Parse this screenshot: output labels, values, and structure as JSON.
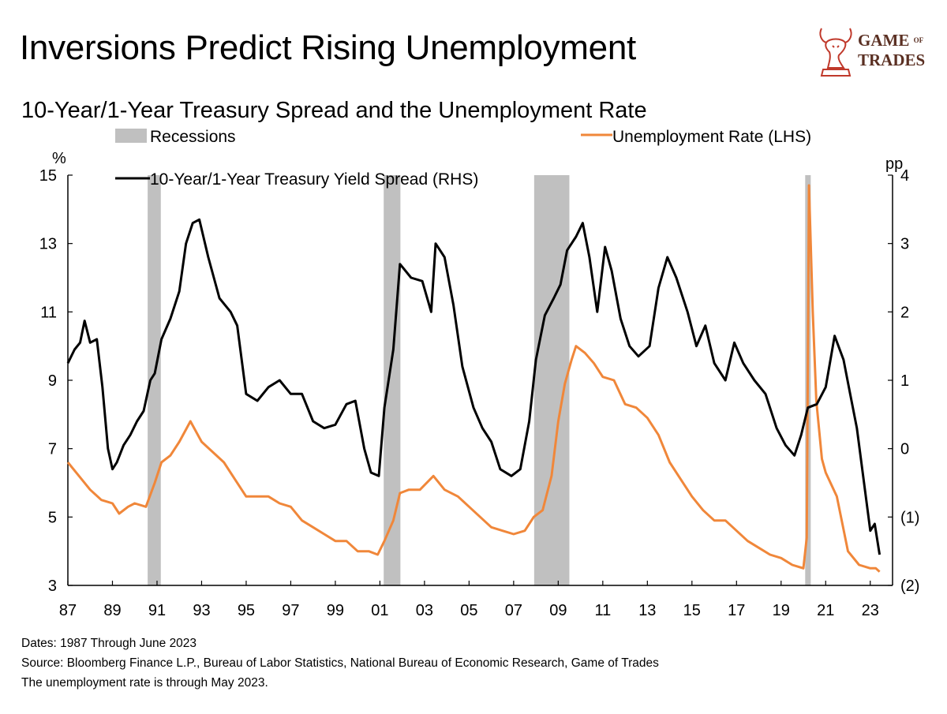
{
  "title": "Inversions Predict Rising Unemployment",
  "subtitle": "10-Year/1-Year Treasury Spread and the Unemployment Rate",
  "logo": {
    "line1": "GAME",
    "of": "OF",
    "line2": "TRADES"
  },
  "notes": {
    "dates": "Dates: 1987 Through June 2023",
    "source": "Source: Bloomberg Finance L.P., Bureau of Labor Statistics, National Bureau of Economic Research, Game of Trades",
    "footnote": "The unemployment rate is through May 2023."
  },
  "colors": {
    "unemployment": "#f0873a",
    "spread": "#000000",
    "recession": "#c0c0c0"
  },
  "chart_data": {
    "type": "line",
    "legend": [
      {
        "name": "Recessions",
        "kind": "bar"
      },
      {
        "name": "Unemployment Rate (LHS)",
        "kind": "line"
      },
      {
        "name": "10-Year/1-Year Treasury Yield Spread (RHS)",
        "kind": "line"
      }
    ],
    "left_axis": {
      "unit": "%",
      "min": 3,
      "max": 15,
      "ticks": [
        3,
        5,
        7,
        9,
        11,
        13,
        15
      ]
    },
    "right_axis": {
      "unit": "pp",
      "min": -2,
      "max": 4,
      "ticks": [
        -2,
        -1,
        0,
        1,
        2,
        3,
        4
      ],
      "tick_labels": [
        "(2)",
        "(1)",
        "0",
        "1",
        "2",
        "3",
        "4"
      ]
    },
    "x_axis": {
      "min": 1987,
      "max": 2024,
      "ticks": [
        1987,
        1989,
        1991,
        1993,
        1995,
        1997,
        1999,
        2001,
        2003,
        2005,
        2007,
        2009,
        2011,
        2013,
        2015,
        2017,
        2019,
        2021,
        2023
      ],
      "tick_labels": [
        "87",
        "89",
        "91",
        "93",
        "95",
        "97",
        "99",
        "01",
        "03",
        "05",
        "07",
        "09",
        "11",
        "13",
        "15",
        "17",
        "19",
        "21",
        "23"
      ]
    },
    "recessions": [
      [
        1990.58,
        1991.17
      ],
      [
        2001.17,
        2001.92
      ],
      [
        2007.92,
        2009.5
      ],
      [
        2020.08,
        2020.33
      ]
    ],
    "series": [
      {
        "name": "Unemployment Rate (LHS)",
        "axis": "left",
        "points": [
          [
            1987.0,
            6.6
          ],
          [
            1987.5,
            6.2
          ],
          [
            1988.0,
            5.8
          ],
          [
            1988.5,
            5.5
          ],
          [
            1989.0,
            5.4
          ],
          [
            1989.3,
            5.1
          ],
          [
            1989.7,
            5.3
          ],
          [
            1990.0,
            5.4
          ],
          [
            1990.5,
            5.3
          ],
          [
            1990.9,
            6.0
          ],
          [
            1991.2,
            6.6
          ],
          [
            1991.6,
            6.8
          ],
          [
            1992.0,
            7.2
          ],
          [
            1992.5,
            7.8
          ],
          [
            1993.0,
            7.2
          ],
          [
            1993.5,
            6.9
          ],
          [
            1994.0,
            6.6
          ],
          [
            1994.5,
            6.1
          ],
          [
            1995.0,
            5.6
          ],
          [
            1995.5,
            5.6
          ],
          [
            1996.0,
            5.6
          ],
          [
            1996.5,
            5.4
          ],
          [
            1997.0,
            5.3
          ],
          [
            1997.5,
            4.9
          ],
          [
            1998.0,
            4.7
          ],
          [
            1998.5,
            4.5
          ],
          [
            1999.0,
            4.3
          ],
          [
            1999.5,
            4.3
          ],
          [
            2000.0,
            4.0
          ],
          [
            2000.5,
            4.0
          ],
          [
            2000.9,
            3.9
          ],
          [
            2001.2,
            4.3
          ],
          [
            2001.6,
            4.9
          ],
          [
            2001.9,
            5.7
          ],
          [
            2002.3,
            5.8
          ],
          [
            2002.8,
            5.8
          ],
          [
            2003.4,
            6.2
          ],
          [
            2003.9,
            5.8
          ],
          [
            2004.5,
            5.6
          ],
          [
            2005.0,
            5.3
          ],
          [
            2005.5,
            5.0
          ],
          [
            2006.0,
            4.7
          ],
          [
            2006.5,
            4.6
          ],
          [
            2007.0,
            4.5
          ],
          [
            2007.5,
            4.6
          ],
          [
            2007.9,
            5.0
          ],
          [
            2008.3,
            5.2
          ],
          [
            2008.7,
            6.2
          ],
          [
            2009.0,
            7.8
          ],
          [
            2009.3,
            8.9
          ],
          [
            2009.6,
            9.6
          ],
          [
            2009.8,
            10.0
          ],
          [
            2010.2,
            9.8
          ],
          [
            2010.6,
            9.5
          ],
          [
            2011.0,
            9.1
          ],
          [
            2011.5,
            9.0
          ],
          [
            2012.0,
            8.3
          ],
          [
            2012.5,
            8.2
          ],
          [
            2013.0,
            7.9
          ],
          [
            2013.5,
            7.4
          ],
          [
            2014.0,
            6.6
          ],
          [
            2014.5,
            6.1
          ],
          [
            2015.0,
            5.6
          ],
          [
            2015.5,
            5.2
          ],
          [
            2016.0,
            4.9
          ],
          [
            2016.5,
            4.9
          ],
          [
            2017.0,
            4.6
          ],
          [
            2017.5,
            4.3
          ],
          [
            2018.0,
            4.1
          ],
          [
            2018.5,
            3.9
          ],
          [
            2019.0,
            3.8
          ],
          [
            2019.5,
            3.6
          ],
          [
            2020.0,
            3.5
          ],
          [
            2020.15,
            4.4
          ],
          [
            2020.25,
            14.7
          ],
          [
            2020.42,
            11.0
          ],
          [
            2020.58,
            8.4
          ],
          [
            2020.83,
            6.7
          ],
          [
            2021.0,
            6.3
          ],
          [
            2021.5,
            5.6
          ],
          [
            2022.0,
            4.0
          ],
          [
            2022.5,
            3.6
          ],
          [
            2023.0,
            3.5
          ],
          [
            2023.25,
            3.5
          ],
          [
            2023.42,
            3.4
          ]
        ]
      },
      {
        "name": "10-Year/1-Year Treasury Yield Spread (RHS)",
        "axis": "right",
        "points": [
          [
            1987.0,
            1.25
          ],
          [
            1987.3,
            1.45
          ],
          [
            1987.55,
            1.55
          ],
          [
            1987.75,
            1.87
          ],
          [
            1988.0,
            1.55
          ],
          [
            1988.3,
            1.6
          ],
          [
            1988.55,
            0.9
          ],
          [
            1988.8,
            0.0
          ],
          [
            1989.0,
            -0.3
          ],
          [
            1989.2,
            -0.2
          ],
          [
            1989.5,
            0.05
          ],
          [
            1989.8,
            0.2
          ],
          [
            1990.1,
            0.4
          ],
          [
            1990.4,
            0.55
          ],
          [
            1990.7,
            1.0
          ],
          [
            1990.9,
            1.1
          ],
          [
            1991.2,
            1.6
          ],
          [
            1991.6,
            1.9
          ],
          [
            1992.0,
            2.3
          ],
          [
            1992.3,
            3.0
          ],
          [
            1992.6,
            3.3
          ],
          [
            1992.9,
            3.35
          ],
          [
            1993.3,
            2.8
          ],
          [
            1993.8,
            2.2
          ],
          [
            1994.3,
            2.0
          ],
          [
            1994.6,
            1.8
          ],
          [
            1995.0,
            0.8
          ],
          [
            1995.5,
            0.7
          ],
          [
            1996.0,
            0.9
          ],
          [
            1996.5,
            1.0
          ],
          [
            1997.0,
            0.8
          ],
          [
            1997.5,
            0.8
          ],
          [
            1998.0,
            0.4
          ],
          [
            1998.5,
            0.3
          ],
          [
            1999.0,
            0.35
          ],
          [
            1999.5,
            0.65
          ],
          [
            1999.9,
            0.7
          ],
          [
            2000.3,
            0.0
          ],
          [
            2000.6,
            -0.35
          ],
          [
            2000.95,
            -0.4
          ],
          [
            2001.2,
            0.6
          ],
          [
            2001.6,
            1.45
          ],
          [
            2001.9,
            2.7
          ],
          [
            2002.4,
            2.5
          ],
          [
            2002.9,
            2.45
          ],
          [
            2003.3,
            2.0
          ],
          [
            2003.5,
            3.0
          ],
          [
            2003.9,
            2.8
          ],
          [
            2004.3,
            2.1
          ],
          [
            2004.7,
            1.2
          ],
          [
            2005.2,
            0.6
          ],
          [
            2005.6,
            0.3
          ],
          [
            2006.0,
            0.1
          ],
          [
            2006.4,
            -0.3
          ],
          [
            2006.9,
            -0.4
          ],
          [
            2007.3,
            -0.3
          ],
          [
            2007.7,
            0.4
          ],
          [
            2008.0,
            1.3
          ],
          [
            2008.4,
            1.95
          ],
          [
            2008.8,
            2.2
          ],
          [
            2009.1,
            2.4
          ],
          [
            2009.4,
            2.9
          ],
          [
            2009.8,
            3.1
          ],
          [
            2010.1,
            3.3
          ],
          [
            2010.4,
            2.8
          ],
          [
            2010.75,
            2.0
          ],
          [
            2011.1,
            2.95
          ],
          [
            2011.4,
            2.6
          ],
          [
            2011.8,
            1.9
          ],
          [
            2012.2,
            1.5
          ],
          [
            2012.6,
            1.35
          ],
          [
            2013.1,
            1.5
          ],
          [
            2013.5,
            2.35
          ],
          [
            2013.9,
            2.8
          ],
          [
            2014.3,
            2.5
          ],
          [
            2014.8,
            2.0
          ],
          [
            2015.2,
            1.5
          ],
          [
            2015.6,
            1.8
          ],
          [
            2016.0,
            1.25
          ],
          [
            2016.5,
            1.0
          ],
          [
            2016.9,
            1.55
          ],
          [
            2017.3,
            1.25
          ],
          [
            2017.8,
            1.0
          ],
          [
            2018.3,
            0.8
          ],
          [
            2018.8,
            0.3
          ],
          [
            2019.2,
            0.05
          ],
          [
            2019.6,
            -0.1
          ],
          [
            2019.9,
            0.2
          ],
          [
            2020.2,
            0.6
          ],
          [
            2020.6,
            0.65
          ],
          [
            2021.0,
            0.9
          ],
          [
            2021.4,
            1.65
          ],
          [
            2021.8,
            1.3
          ],
          [
            2022.1,
            0.8
          ],
          [
            2022.4,
            0.3
          ],
          [
            2022.7,
            -0.45
          ],
          [
            2023.0,
            -1.2
          ],
          [
            2023.2,
            -1.1
          ],
          [
            2023.42,
            -1.55
          ]
        ]
      }
    ]
  }
}
